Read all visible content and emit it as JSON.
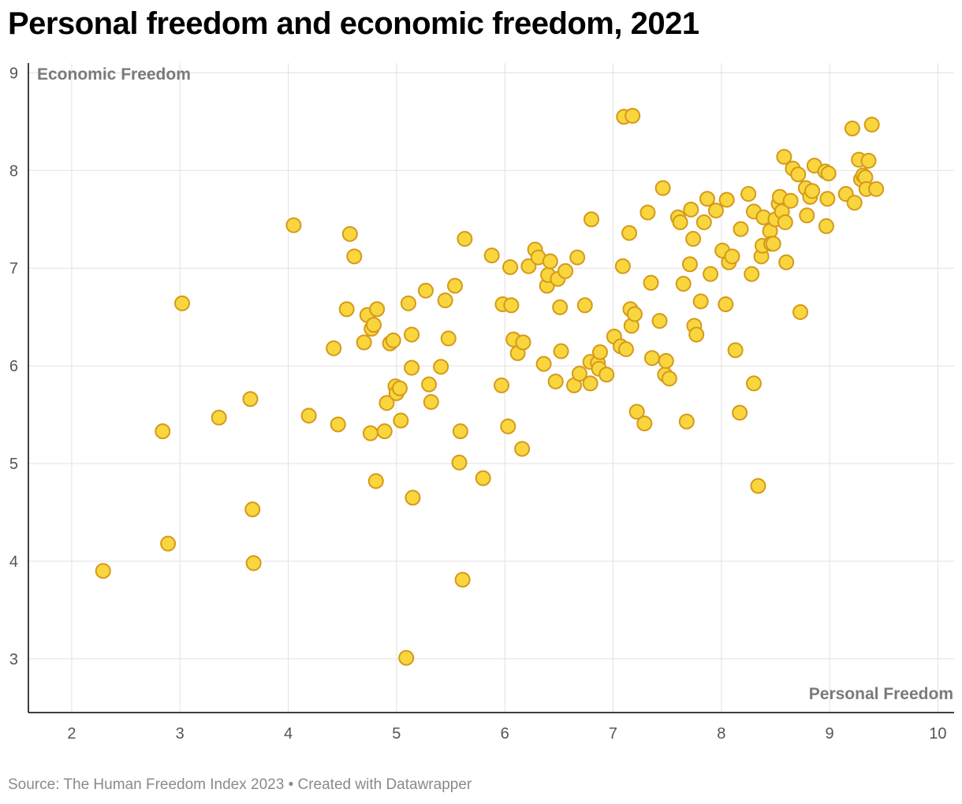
{
  "title": "Personal freedom and economic freedom, 2021",
  "footer": "Source: The Human Freedom Index 2023 • Created with Datawrapper",
  "colors": {
    "dot_fill": "#f9d53e",
    "dot_stroke": "#d49a1a",
    "grid": "#e1e1e1",
    "axis": "#000000"
  },
  "chart_data": {
    "type": "scatter",
    "title": "Personal freedom and economic freedom, 2021",
    "xlabel": "Personal Freedom",
    "ylabel": "Economic Freedom",
    "xlim": [
      1.6,
      10.15
    ],
    "ylim": [
      2.45,
      9.1
    ],
    "xticks": [
      2,
      3,
      4,
      5,
      6,
      7,
      8,
      9,
      10
    ],
    "yticks": [
      3,
      4,
      5,
      6,
      7,
      8,
      9
    ],
    "grid": true,
    "points": [
      [
        2.29,
        3.9
      ],
      [
        2.84,
        5.33
      ],
      [
        2.89,
        4.18
      ],
      [
        3.02,
        6.64
      ],
      [
        3.36,
        5.47
      ],
      [
        3.65,
        5.66
      ],
      [
        3.67,
        4.53
      ],
      [
        3.68,
        3.98
      ],
      [
        4.05,
        7.44
      ],
      [
        4.19,
        5.49
      ],
      [
        4.42,
        6.18
      ],
      [
        4.46,
        5.4
      ],
      [
        4.54,
        6.58
      ],
      [
        4.57,
        7.35
      ],
      [
        4.61,
        7.12
      ],
      [
        4.7,
        6.24
      ],
      [
        4.73,
        6.52
      ],
      [
        4.76,
        5.31
      ],
      [
        4.77,
        6.38
      ],
      [
        4.79,
        6.42
      ],
      [
        4.81,
        4.82
      ],
      [
        4.82,
        6.58
      ],
      [
        4.89,
        5.33
      ],
      [
        4.91,
        5.62
      ],
      [
        4.94,
        6.23
      ],
      [
        4.97,
        6.26
      ],
      [
        4.99,
        5.79
      ],
      [
        5.0,
        5.72
      ],
      [
        5.03,
        5.77
      ],
      [
        5.04,
        5.44
      ],
      [
        5.09,
        3.01
      ],
      [
        5.11,
        6.64
      ],
      [
        5.14,
        5.98
      ],
      [
        5.14,
        6.32
      ],
      [
        5.15,
        4.65
      ],
      [
        5.27,
        6.77
      ],
      [
        5.3,
        5.81
      ],
      [
        5.32,
        5.63
      ],
      [
        5.41,
        5.99
      ],
      [
        5.45,
        6.67
      ],
      [
        5.48,
        6.28
      ],
      [
        5.54,
        6.82
      ],
      [
        5.58,
        5.01
      ],
      [
        5.59,
        5.33
      ],
      [
        5.61,
        3.81
      ],
      [
        5.63,
        7.3
      ],
      [
        5.8,
        4.85
      ],
      [
        5.88,
        7.13
      ],
      [
        5.97,
        5.8
      ],
      [
        5.98,
        6.63
      ],
      [
        6.03,
        5.38
      ],
      [
        6.05,
        7.01
      ],
      [
        6.06,
        6.62
      ],
      [
        6.08,
        6.27
      ],
      [
        6.12,
        6.13
      ],
      [
        6.16,
        5.15
      ],
      [
        6.17,
        6.24
      ],
      [
        6.22,
        7.02
      ],
      [
        6.28,
        7.19
      ],
      [
        6.31,
        7.11
      ],
      [
        6.36,
        6.02
      ],
      [
        6.39,
        6.82
      ],
      [
        6.4,
        6.93
      ],
      [
        6.42,
        7.07
      ],
      [
        6.47,
        5.84
      ],
      [
        6.49,
        6.89
      ],
      [
        6.51,
        6.6
      ],
      [
        6.52,
        6.15
      ],
      [
        6.56,
        6.97
      ],
      [
        6.64,
        5.8
      ],
      [
        6.67,
        7.11
      ],
      [
        6.69,
        5.92
      ],
      [
        6.74,
        6.62
      ],
      [
        6.79,
        5.82
      ],
      [
        6.79,
        6.04
      ],
      [
        6.8,
        7.5
      ],
      [
        6.86,
        6.03
      ],
      [
        6.87,
        5.97
      ],
      [
        6.88,
        6.14
      ],
      [
        6.94,
        5.91
      ],
      [
        7.01,
        6.3
      ],
      [
        7.07,
        6.2
      ],
      [
        7.09,
        7.02
      ],
      [
        7.1,
        8.55
      ],
      [
        7.12,
        6.17
      ],
      [
        7.15,
        7.36
      ],
      [
        7.16,
        6.58
      ],
      [
        7.17,
        6.41
      ],
      [
        7.18,
        8.56
      ],
      [
        7.2,
        6.53
      ],
      [
        7.22,
        5.53
      ],
      [
        7.29,
        5.41
      ],
      [
        7.32,
        7.57
      ],
      [
        7.35,
        6.85
      ],
      [
        7.36,
        6.08
      ],
      [
        7.43,
        6.46
      ],
      [
        7.46,
        7.82
      ],
      [
        7.48,
        5.91
      ],
      [
        7.49,
        6.05
      ],
      [
        7.52,
        5.87
      ],
      [
        7.6,
        7.52
      ],
      [
        7.62,
        7.47
      ],
      [
        7.65,
        6.84
      ],
      [
        7.68,
        5.43
      ],
      [
        7.71,
        7.04
      ],
      [
        7.72,
        7.6
      ],
      [
        7.74,
        7.3
      ],
      [
        7.75,
        6.41
      ],
      [
        7.77,
        6.32
      ],
      [
        7.81,
        6.66
      ],
      [
        7.84,
        7.47
      ],
      [
        7.87,
        7.71
      ],
      [
        7.9,
        6.94
      ],
      [
        7.95,
        7.59
      ],
      [
        8.01,
        7.18
      ],
      [
        8.04,
        6.63
      ],
      [
        8.05,
        7.7
      ],
      [
        8.07,
        7.06
      ],
      [
        8.1,
        7.12
      ],
      [
        8.13,
        6.16
      ],
      [
        8.17,
        5.52
      ],
      [
        8.18,
        7.4
      ],
      [
        8.25,
        7.76
      ],
      [
        8.28,
        6.94
      ],
      [
        8.3,
        5.82
      ],
      [
        8.3,
        7.58
      ],
      [
        8.34,
        4.77
      ],
      [
        8.37,
        7.12
      ],
      [
        8.38,
        7.23
      ],
      [
        8.39,
        7.52
      ],
      [
        8.45,
        7.38
      ],
      [
        8.46,
        7.25
      ],
      [
        8.48,
        7.25
      ],
      [
        8.5,
        7.5
      ],
      [
        8.53,
        7.66
      ],
      [
        8.54,
        7.73
      ],
      [
        8.56,
        7.58
      ],
      [
        8.58,
        8.14
      ],
      [
        8.59,
        7.47
      ],
      [
        8.6,
        7.06
      ],
      [
        8.64,
        7.69
      ],
      [
        8.66,
        8.02
      ],
      [
        8.71,
        7.96
      ],
      [
        8.73,
        6.55
      ],
      [
        8.78,
        7.82
      ],
      [
        8.79,
        7.54
      ],
      [
        8.82,
        7.73
      ],
      [
        8.84,
        7.79
      ],
      [
        8.86,
        8.05
      ],
      [
        8.96,
        7.99
      ],
      [
        8.97,
        7.43
      ],
      [
        8.98,
        7.71
      ],
      [
        8.99,
        7.97
      ],
      [
        9.15,
        7.76
      ],
      [
        9.21,
        8.43
      ],
      [
        9.23,
        7.67
      ],
      [
        9.27,
        8.11
      ],
      [
        9.29,
        7.91
      ],
      [
        9.31,
        7.95
      ],
      [
        9.33,
        7.93
      ],
      [
        9.34,
        7.81
      ],
      [
        9.36,
        8.1
      ],
      [
        9.39,
        8.47
      ],
      [
        9.43,
        7.81
      ]
    ]
  }
}
